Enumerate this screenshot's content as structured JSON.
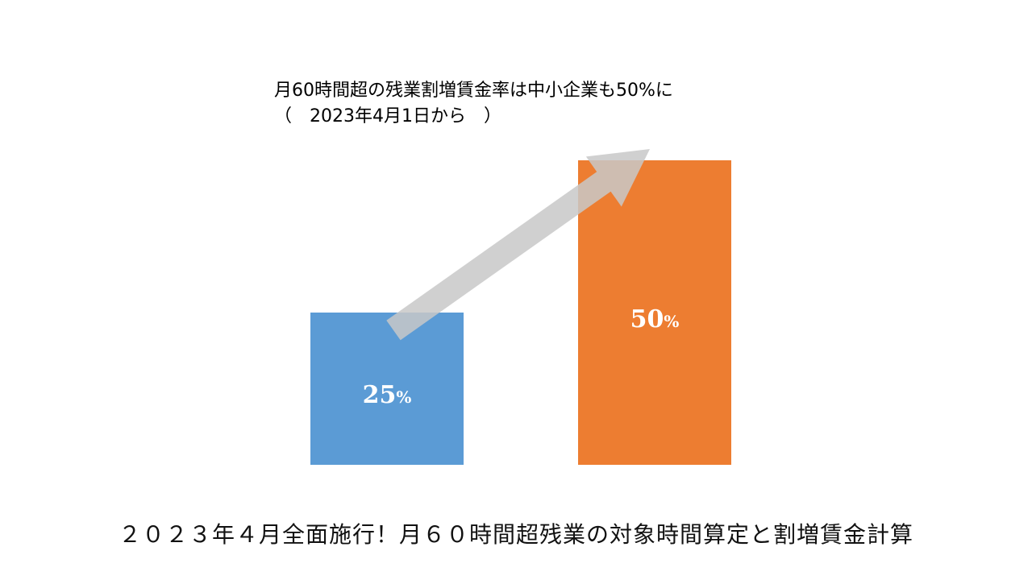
{
  "chart_data": {
    "type": "bar",
    "title_line1": "月60時間超の残業割増賃金率は中小企業も50%に",
    "title_line2": "（　2023年4月1日から　）",
    "categories": [
      "",
      ""
    ],
    "values": [
      25,
      50
    ],
    "data_labels": [
      {
        "number": "25",
        "unit": "%"
      },
      {
        "number": "50",
        "unit": "%"
      }
    ],
    "bar_colors": [
      "#5b9bd5",
      "#ed7d31"
    ],
    "arrow_color": "#c8c8c8",
    "ylim": [
      0,
      50
    ],
    "grid": false,
    "legend": "none"
  },
  "footer": {
    "caption": "２０２３年４月全面施行！月６０時間超残業の対象時間算定と割増賃金計算"
  }
}
